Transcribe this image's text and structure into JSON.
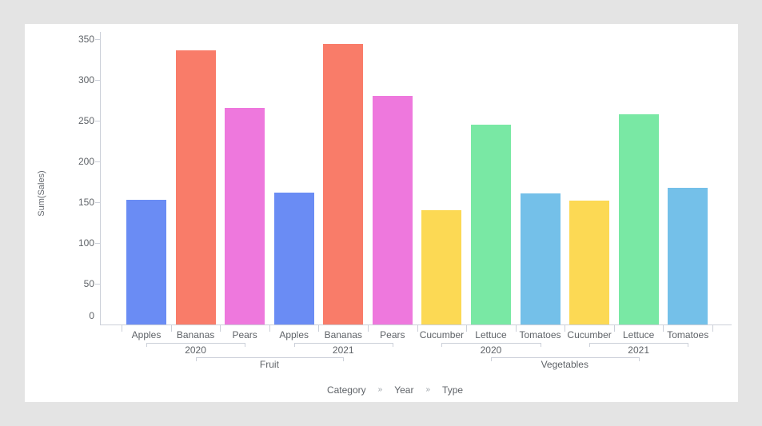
{
  "window": {
    "background": "#e4e4e4",
    "panel_background": "#ffffff"
  },
  "chart_data": {
    "type": "bar",
    "title": "",
    "ylabel": "Sum(Sales)",
    "ylim": [
      0,
      350
    ],
    "yticks": [
      0,
      50,
      100,
      150,
      200,
      250,
      300,
      350
    ],
    "grid": false,
    "legend_position": "none",
    "hierarchy_levels": [
      "Category",
      "Year",
      "Type"
    ],
    "groups": [
      {
        "category": "Fruit",
        "years": [
          {
            "year": "2020",
            "bars": [
              {
                "type": "Apples",
                "value": 153,
                "color": "#6a8cf4"
              },
              {
                "type": "Bananas",
                "value": 336,
                "color": "#f97c69"
              },
              {
                "type": "Pears",
                "value": 266,
                "color": "#ee78dd"
              }
            ]
          },
          {
            "year": "2021",
            "bars": [
              {
                "type": "Apples",
                "value": 162,
                "color": "#6a8cf4"
              },
              {
                "type": "Bananas",
                "value": 344,
                "color": "#f97c69"
              },
              {
                "type": "Pears",
                "value": 280,
                "color": "#ee78dd"
              }
            ]
          }
        ]
      },
      {
        "category": "Vegetables",
        "years": [
          {
            "year": "2020",
            "bars": [
              {
                "type": "Cucumber",
                "value": 140,
                "color": "#fcd954"
              },
              {
                "type": "Lettuce",
                "value": 245,
                "color": "#79e8a4"
              },
              {
                "type": "Tomatoes",
                "value": 161,
                "color": "#74c0e9"
              }
            ]
          },
          {
            "year": "2021",
            "bars": [
              {
                "type": "Cucumber",
                "value": 152,
                "color": "#fcd954"
              },
              {
                "type": "Lettuce",
                "value": 258,
                "color": "#79e8a4"
              },
              {
                "type": "Tomatoes",
                "value": 168,
                "color": "#74c0e9"
              }
            ]
          }
        ]
      }
    ],
    "axis_color": "#ccd0d9",
    "label_color": "#5f6368"
  },
  "breadcrumb": {
    "items": [
      "Category",
      "Year",
      "Type"
    ],
    "separator": "»"
  }
}
